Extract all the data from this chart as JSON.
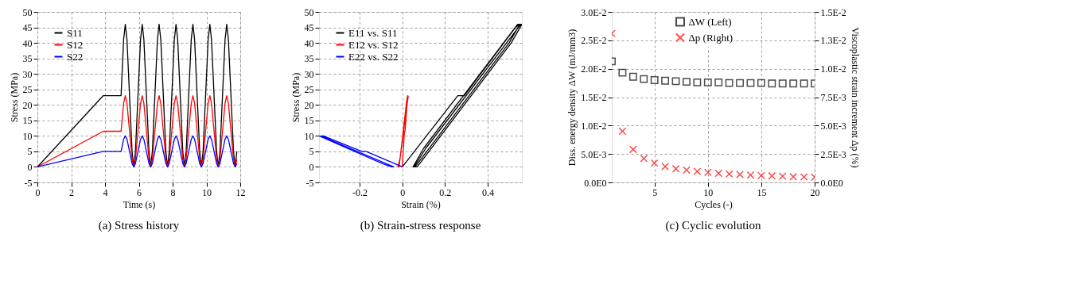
{
  "chart_data": [
    {
      "type": "line",
      "title": "(a) Stress history",
      "xlabel": "Time (s)",
      "ylabel": "Stress (MPa)",
      "xlim": [
        0,
        12
      ],
      "xticks": [
        0,
        2,
        4,
        6,
        8,
        10,
        12
      ],
      "ylim": [
        -5,
        50
      ],
      "yticks": [
        -5,
        0,
        5,
        10,
        15,
        20,
        25,
        30,
        35,
        40,
        45,
        50
      ],
      "grid": true,
      "legend": "top left",
      "x": [
        0,
        3.9,
        4.95,
        5.1,
        5.2,
        5.3,
        5.45,
        5.6,
        5.7,
        5.8,
        5.95,
        6.1,
        6.2,
        6.3,
        6.45,
        6.6,
        6.7,
        6.8,
        6.95,
        7.1,
        7.2,
        7.3,
        7.45,
        7.6,
        7.7,
        7.8,
        7.95,
        8.1,
        8.2,
        8.3,
        8.45,
        8.6,
        8.7,
        8.8,
        8.95,
        9.1,
        9.2,
        9.3,
        9.45,
        9.6,
        9.7,
        9.8,
        9.95,
        10.1,
        10.2,
        10.3,
        10.45,
        10.6,
        10.7,
        10.8,
        10.95,
        11.1,
        11.2,
        11.3,
        11.45,
        11.6,
        11.7,
        11.8
      ],
      "series": [
        {
          "name": "S11",
          "color": "#000000",
          "values": [
            0,
            23,
            23,
            41,
            46,
            41,
            23,
            5,
            0,
            5,
            23,
            41,
            46,
            41,
            23,
            5,
            0,
            5,
            23,
            41,
            46,
            41,
            23,
            5,
            0,
            5,
            23,
            41,
            46,
            41,
            23,
            5,
            0,
            5,
            23,
            41,
            46,
            41,
            23,
            5,
            0,
            5,
            23,
            41,
            46,
            41,
            23,
            5,
            0,
            5,
            23,
            41,
            46,
            41,
            23,
            5,
            0,
            5
          ]
        },
        {
          "name": "S12",
          "color": "#ff0000",
          "values": [
            0,
            11.5,
            11.5,
            20.5,
            23,
            20.5,
            11.5,
            2.5,
            0,
            2.5,
            11.5,
            20.5,
            23,
            20.5,
            11.5,
            2.5,
            0,
            2.5,
            11.5,
            20.5,
            23,
            20.5,
            11.5,
            2.5,
            0,
            2.5,
            11.5,
            20.5,
            23,
            20.5,
            11.5,
            2.5,
            0,
            2.5,
            11.5,
            20.5,
            23,
            20.5,
            11.5,
            2.5,
            0,
            2.5,
            11.5,
            20.5,
            23,
            20.5,
            11.5,
            2.5,
            0,
            2.5,
            11.5,
            20.5,
            23,
            20.5,
            11.5,
            2.5,
            0,
            2.5
          ]
        },
        {
          "name": "S22",
          "color": "#0000ff",
          "values": [
            0,
            5,
            5,
            8.9,
            10,
            8.9,
            5,
            1.1,
            0,
            1.1,
            5,
            8.9,
            10,
            8.9,
            5,
            1.1,
            0,
            1.1,
            5,
            8.9,
            10,
            8.9,
            5,
            1.1,
            0,
            1.1,
            5,
            8.9,
            10,
            8.9,
            5,
            1.1,
            0,
            1.1,
            5,
            8.9,
            10,
            8.9,
            5,
            1.1,
            0,
            1.1,
            5,
            8.9,
            10,
            8.9,
            5,
            1.1,
            0,
            1.1,
            5,
            8.9,
            10,
            8.9,
            5,
            1.1,
            0,
            1.1
          ]
        }
      ]
    },
    {
      "type": "line",
      "title": "(b) Strain-stress response",
      "xlabel": "Strain (%)",
      "ylabel": "Stress (MPa)",
      "xlim": [
        -0.39,
        0.56
      ],
      "xticks": [
        -0.2,
        0,
        0.2,
        0.4
      ],
      "ylim": [
        -5,
        50
      ],
      "yticks": [
        -5,
        0,
        5,
        10,
        15,
        20,
        25,
        30,
        35,
        40,
        45,
        50
      ],
      "grid": true,
      "legend": "top left",
      "series": [
        {
          "name": "E11 vs. S11",
          "color": "#000000",
          "x": [
            0,
            0.26,
            0.29,
            0.53,
            0.55,
            0.5,
            0.06,
            0.05,
            0.1,
            0.54,
            0.56,
            0.51,
            0.07,
            0.055,
            0.11,
            0.555
          ],
          "values": [
            0,
            23,
            23,
            45,
            46,
            40,
            0,
            0,
            6,
            46,
            46,
            40,
            0,
            0,
            6,
            46
          ]
        },
        {
          "name": "E12 vs. S12",
          "color": "#ff0000",
          "x": [
            0,
            0.01,
            0.013,
            0.025,
            0.02,
            -0.015,
            -0.02,
            -0.01,
            0.028
          ],
          "values": [
            0,
            11.5,
            11.5,
            23,
            21,
            0,
            0,
            3,
            23
          ]
        },
        {
          "name": "E22 vs. S22",
          "color": "#0000ff",
          "x": [
            0,
            -0.17,
            -0.19,
            -0.37,
            -0.38,
            -0.33,
            -0.04,
            -0.05,
            -0.09,
            -0.39
          ],
          "values": [
            0,
            5,
            5,
            10,
            10,
            8.5,
            0,
            0,
            1,
            10
          ]
        }
      ]
    },
    {
      "type": "scatter",
      "title": "(c) Cyclic evolution",
      "xlabel": "Cycles (-)",
      "ylabel": "Diss. energy density ΔW (mJ/mm3)",
      "y2label": "Viscoplastic strain increment Δp (%)",
      "xlim": [
        1,
        20
      ],
      "xticks": [
        5,
        10,
        15,
        20
      ],
      "ylim": [
        0,
        0.03
      ],
      "yticks": [
        {
          "value": 0,
          "label": "0.0E0"
        },
        {
          "value": 0.005,
          "label": "5.0E-3"
        },
        {
          "value": 0.01,
          "label": "1.0E-2"
        },
        {
          "value": 0.015,
          "label": "1.5E-2"
        },
        {
          "value": 0.02,
          "label": "2.0E-2"
        },
        {
          "value": 0.025,
          "label": "2.5E-2"
        },
        {
          "value": 0.03,
          "label": "3.0E-2"
        }
      ],
      "y2lim": [
        0,
        0.015
      ],
      "y2ticks": [
        {
          "value": 0,
          "label": "0.0E0"
        },
        {
          "value": 0.0025,
          "label": "2.5E-3"
        },
        {
          "value": 0.005,
          "label": "5.0E-3"
        },
        {
          "value": 0.0075,
          "label": "7.5E-3"
        },
        {
          "value": 0.01,
          "label": "1.0E-2"
        },
        {
          "value": 0.0125,
          "label": "1.3E-2"
        },
        {
          "value": 0.015,
          "label": "1.5E-2"
        }
      ],
      "grid": true,
      "legend": "top",
      "x": [
        1,
        2,
        3,
        4,
        5,
        6,
        7,
        8,
        9,
        10,
        11,
        12,
        13,
        14,
        15,
        16,
        17,
        18,
        19,
        20
      ],
      "series": [
        {
          "name": "ΔW (Left)",
          "color": "#000000",
          "marker": "square",
          "values": [
            0.0213,
            0.0193,
            0.0186,
            0.0182,
            0.018,
            0.0179,
            0.0178,
            0.0177,
            0.0176,
            0.0176,
            0.0176,
            0.0175,
            0.0175,
            0.0175,
            0.0175,
            0.0174,
            0.0174,
            0.0174,
            0.0174,
            0.0174
          ]
        },
        {
          "name": "Δp (Right)",
          "color": "#ff0000",
          "marker": "cross",
          "axis": "y2",
          "values": [
            0.0131,
            0.0045,
            0.0029,
            0.0021,
            0.0017,
            0.0014,
            0.0012,
            0.00108,
            0.00097,
            0.00088,
            0.0008,
            0.00074,
            0.0007,
            0.00065,
            0.0006,
            0.00057,
            0.00055,
            0.0005,
            0.00048,
            0.00046
          ]
        }
      ]
    }
  ]
}
